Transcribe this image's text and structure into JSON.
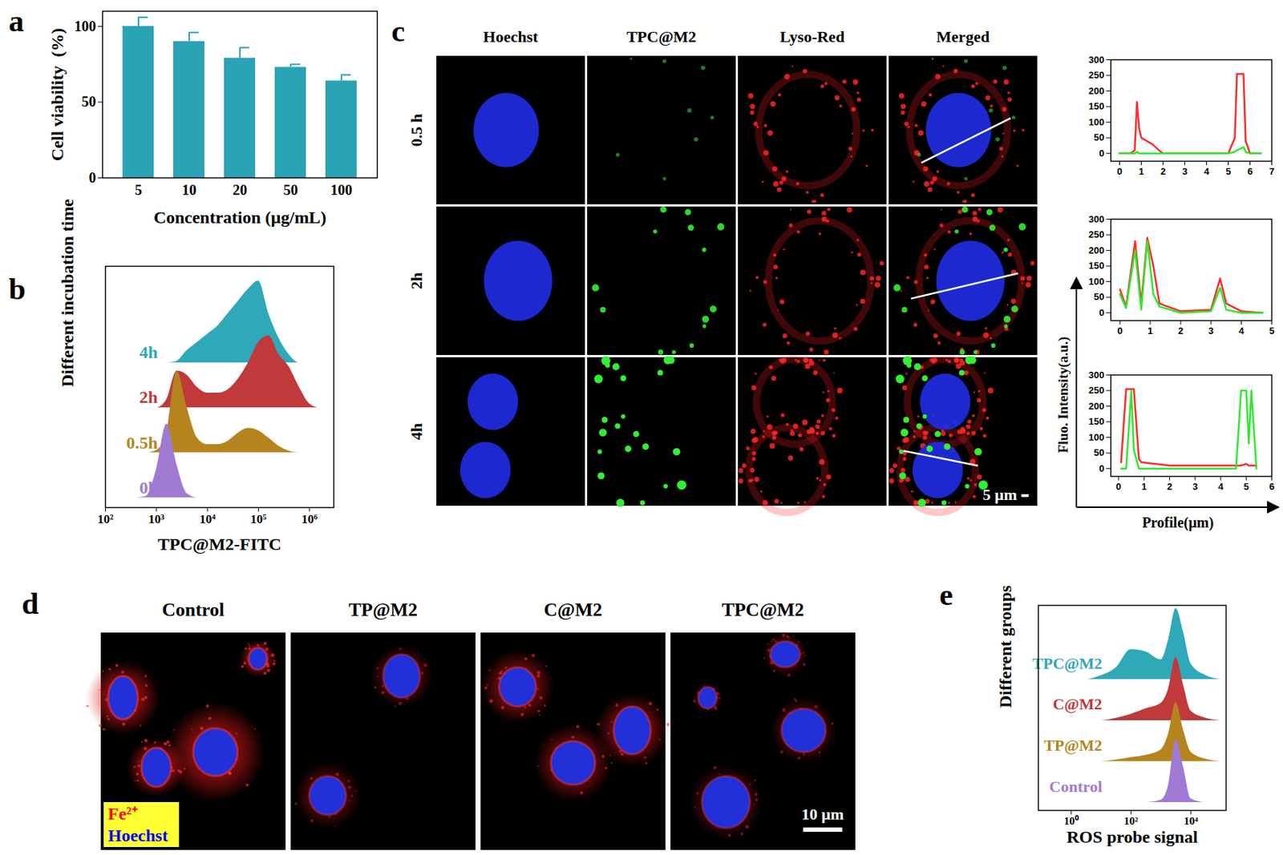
{
  "chart_data": [
    {
      "panel_label": "a",
      "type": "bar",
      "categories": [
        "5",
        "10",
        "20",
        "50",
        "100"
      ],
      "values": [
        100,
        90,
        79,
        73,
        64
      ],
      "errors": [
        6,
        6,
        7,
        2,
        4
      ],
      "color": "#2aa3b5",
      "x_label": "Concentration (μg/mL)",
      "y_label": "Cell viability  (%)",
      "ylim": [
        0,
        110
      ],
      "yticks": [
        0,
        50,
        100
      ]
    },
    {
      "panel_label": "b",
      "type": "ridgeline",
      "log": "x",
      "tick_labels": "x",
      "x_label": "TPC@M2-FITC",
      "y_label": "Different incubation time",
      "x": [
        398,
        631,
        1000,
        1585,
        2512,
        3981,
        6310,
        10000,
        15849,
        25119,
        39811,
        63096,
        100000,
        158489,
        251189,
        398107,
        630957,
        1000000,
        1584893,
        2511886
      ],
      "xlim": [
        100,
        3000000
      ],
      "xticks": [
        {
          "value": 100,
          "label": "10²"
        },
        {
          "value": 1000,
          "label": "10³"
        },
        {
          "value": 10000,
          "label": "10⁴"
        },
        {
          "value": 100000,
          "label": "10⁵"
        },
        {
          "value": 1000000,
          "label": "10⁶"
        }
      ],
      "series": [
        {
          "name": "0h",
          "color": "#a07ad2",
          "values": [
            0,
            2,
            35,
            90,
            40,
            5,
            0,
            0,
            0,
            0,
            0,
            0,
            0,
            0,
            0,
            0,
            0,
            0,
            0,
            0
          ]
        },
        {
          "name": "0.5h",
          "color": "#b5841e",
          "values": [
            0,
            0,
            3,
            25,
            100,
            55,
            18,
            10,
            10,
            14,
            24,
            30,
            27,
            18,
            8,
            2,
            0,
            0,
            0,
            0
          ]
        },
        {
          "name": "2h",
          "color": "#c0393b",
          "values": [
            0,
            0,
            0,
            10,
            45,
            40,
            25,
            18,
            18,
            22,
            35,
            55,
            80,
            88,
            65,
            50,
            25,
            5,
            0,
            0
          ]
        },
        {
          "name": "4h",
          "color": "#2fa8b8",
          "values": [
            0,
            0,
            0,
            0,
            2,
            15,
            25,
            35,
            45,
            60,
            75,
            90,
            100,
            60,
            30,
            10,
            0,
            0,
            0,
            0
          ]
        }
      ]
    },
    {
      "panel_label": "c",
      "type": "micrograph",
      "columns": [
        "Hoechst",
        "TPC@M2",
        "Lyso-Red",
        "Merged"
      ],
      "rows": [
        "0.5 h",
        "2h",
        "4h"
      ],
      "scale_bar": "5 μm"
    },
    {
      "type": "line",
      "x_label": "Profile(μm)",
      "y_label": "Fluo. Intensity(a.u.)",
      "charts": [
        {
          "x": [
            0,
            0.5,
            0.7,
            0.8,
            0.9,
            1.0,
            1.5,
            1.9,
            2.0,
            5.0,
            5.3,
            5.4,
            5.7,
            5.8,
            6.0,
            6.5
          ],
          "xlim": [
            -0.4,
            7
          ],
          "xticks": [
            0,
            1,
            2,
            3,
            4,
            5,
            6,
            7
          ],
          "ylim": [
            -25,
            300
          ],
          "yticks": [
            0,
            50,
            100,
            150,
            200,
            250,
            300
          ],
          "series": [
            {
              "color": "#ff2a2a",
              "values": [
                0,
                0,
                10,
                165,
                80,
                50,
                30,
                5,
                0,
                0,
                50,
                255,
                255,
                40,
                0,
                0
              ]
            },
            {
              "color": "#2ee82e",
              "values": [
                0,
                0,
                0,
                5,
                0,
                0,
                0,
                0,
                0,
                0,
                5,
                10,
                20,
                5,
                0,
                0
              ]
            }
          ]
        },
        {
          "x": [
            0,
            0.2,
            0.5,
            0.7,
            0.9,
            1.1,
            1.3,
            2.0,
            3.0,
            3.3,
            3.5,
            4.0,
            4.7
          ],
          "xlim": [
            -0.3,
            5
          ],
          "xticks": [
            0,
            1,
            2,
            3,
            4,
            5
          ],
          "ylim": [
            -25,
            300
          ],
          "yticks": [
            0,
            50,
            100,
            150,
            200,
            250,
            300
          ],
          "series": [
            {
              "color": "#ff2a2a",
              "values": [
                75,
                20,
                230,
                30,
                240,
                150,
                30,
                5,
                10,
                110,
                30,
                5,
                0
              ]
            },
            {
              "color": "#2ee82e",
              "values": [
                60,
                15,
                200,
                10,
                230,
                60,
                20,
                0,
                5,
                80,
                10,
                0,
                0
              ]
            }
          ]
        },
        {
          "x": [
            0.1,
            0.3,
            0.5,
            0.6,
            0.8,
            0.9,
            2.0,
            4.6,
            4.8,
            5.0,
            5.1,
            5.2,
            5.4
          ],
          "xlim": [
            -0.3,
            6
          ],
          "xticks": [
            0,
            1,
            2,
            3,
            4,
            5,
            6
          ],
          "ylim": [
            -25,
            300
          ],
          "yticks": [
            0,
            50,
            100,
            150,
            200,
            250,
            300
          ],
          "series": [
            {
              "color": "#ff2a2a",
              "values": [
                20,
                255,
                255,
                255,
                30,
                20,
                10,
                10,
                10,
                15,
                10,
                10,
                10
              ]
            },
            {
              "color": "#2ee82e",
              "values": [
                0,
                0,
                250,
                60,
                0,
                0,
                0,
                0,
                250,
                250,
                80,
                250,
                0
              ]
            }
          ]
        }
      ]
    },
    {
      "panel_label": "d",
      "type": "micrograph",
      "columns": [
        "Control",
        "TP@M2",
        "C@M2",
        "TPC@M2"
      ],
      "stain_labels": [
        {
          "label": "Fe²⁺",
          "color": "#ff0000"
        },
        {
          "label": "Hoechst",
          "color": "#0000ff"
        }
      ],
      "scale_bar": "10 μm"
    },
    {
      "panel_label": "e",
      "type": "ridgeline",
      "log": "x",
      "tick_labels": "x",
      "x_label": "ROS probe signal",
      "y_label": "Different groups",
      "x": [
        1,
        3.16,
        10,
        31.6,
        100,
        316,
        1000,
        1778,
        3162,
        5623,
        10000,
        31623,
        100000
      ],
      "xlim": [
        0.08,
        150000
      ],
      "xticks": [
        {
          "value": 1,
          "label": "10⁰"
        },
        {
          "value": 100,
          "label": "10²"
        },
        {
          "value": 10000,
          "label": "10⁴"
        }
      ],
      "series": [
        {
          "name": "Control",
          "color": "#a07ad2",
          "values": [
            0,
            0,
            0,
            0,
            0,
            0,
            3,
            22,
            80,
            45,
            5,
            0,
            0
          ]
        },
        {
          "name": "TP@M2",
          "color": "#b5841e",
          "values": [
            0,
            0,
            0,
            2,
            5,
            8,
            15,
            35,
            75,
            40,
            12,
            3,
            0
          ]
        },
        {
          "name": "C@M2",
          "color": "#c0393b",
          "values": [
            0,
            0,
            0,
            3,
            8,
            15,
            22,
            40,
            80,
            45,
            12,
            3,
            0
          ]
        },
        {
          "name": "TPC@M2",
          "color": "#2fa8b8",
          "values": [
            0,
            0,
            5,
            15,
            38,
            35,
            25,
            50,
            90,
            60,
            20,
            5,
            0
          ]
        }
      ]
    }
  ]
}
